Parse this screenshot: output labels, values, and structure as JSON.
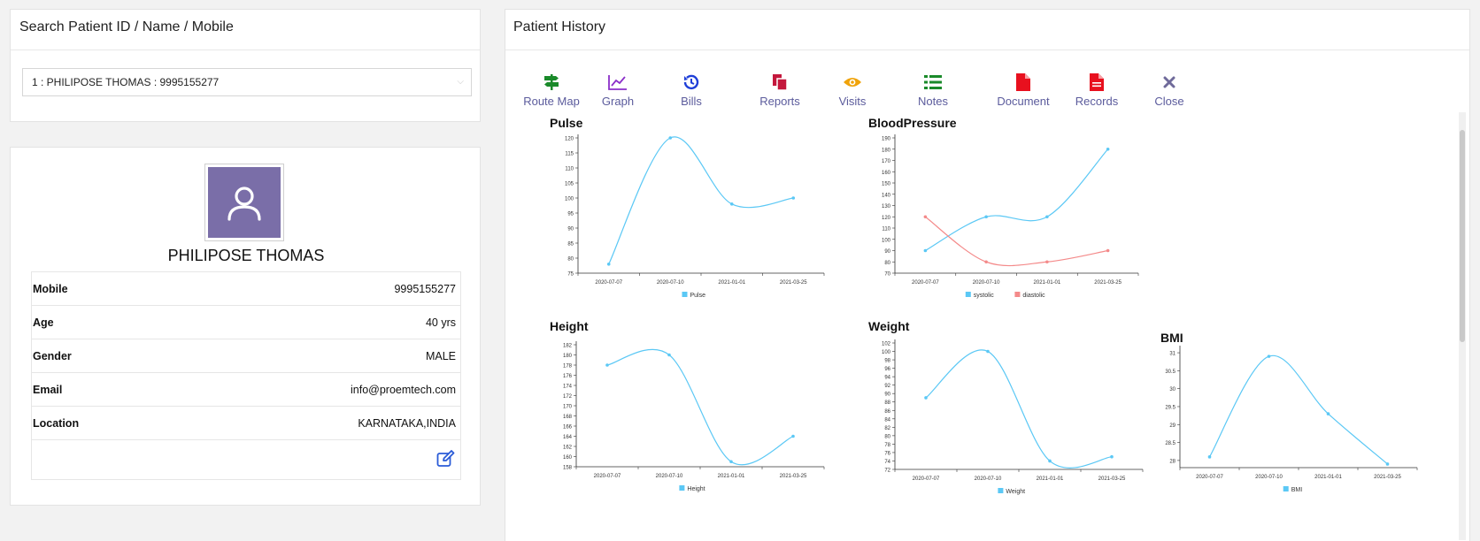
{
  "search": {
    "title": "Search Patient ID / Name / Mobile",
    "selected": "1 : PHILIPOSE THOMAS : 9995155277"
  },
  "profile": {
    "name": "PHILIPOSE THOMAS",
    "fields": [
      {
        "label": "Mobile",
        "value": "9995155277"
      },
      {
        "label": "Age",
        "value": "40 yrs"
      },
      {
        "label": "Gender",
        "value": "MALE"
      },
      {
        "label": "Email",
        "value": "info@proemtech.com"
      },
      {
        "label": "Location",
        "value": "KARNATAKA,INDIA"
      }
    ]
  },
  "history": {
    "title": "Patient History",
    "toolbar": [
      {
        "label": "Route Map",
        "icon": "signpost-icon",
        "color": "#1a8a2a"
      },
      {
        "label": "Graph",
        "icon": "line-graph-icon",
        "color": "#8b2fc9"
      },
      {
        "label": "Bills",
        "icon": "history-icon",
        "color": "#1f3fd8"
      },
      {
        "label": "Reports",
        "icon": "copy-docs-icon",
        "color": "#c4183c"
      },
      {
        "label": "Visits",
        "icon": "eye-icon",
        "color": "#f0a30a"
      },
      {
        "label": "Notes",
        "icon": "list-icon",
        "color": "#1a8a2a"
      },
      {
        "label": "Document",
        "icon": "file-icon",
        "color": "#e8101e"
      },
      {
        "label": "Records",
        "icon": "file-text-icon",
        "color": "#e8101e"
      },
      {
        "label": "Close",
        "icon": "close-icon",
        "color": "#6f6a9a"
      }
    ]
  },
  "chart_data": [
    {
      "type": "line",
      "title": "Pulse",
      "categories": [
        "2020-07-07",
        "2020-07-10",
        "2021-01-01",
        "2021-03-25"
      ],
      "series": [
        {
          "name": "Pulse",
          "values": [
            78,
            120,
            98,
            100
          ],
          "color": "#5bc8f5"
        }
      ],
      "ylim": [
        75,
        120
      ],
      "yticks": [
        75,
        80,
        85,
        90,
        95,
        100,
        105,
        110,
        115,
        120
      ]
    },
    {
      "type": "line",
      "title": "BloodPressure",
      "categories": [
        "2020-07-07",
        "2020-07-10",
        "2021-01-01",
        "2021-03-25"
      ],
      "series": [
        {
          "name": "systolic",
          "values": [
            90,
            120,
            120,
            180
          ],
          "color": "#5bc8f5"
        },
        {
          "name": "diastolic",
          "values": [
            120,
            80,
            80,
            90
          ],
          "color": "#f48a8a"
        }
      ],
      "ylim": [
        70,
        190
      ],
      "yticks": [
        70,
        80,
        90,
        100,
        110,
        120,
        130,
        140,
        150,
        160,
        170,
        180,
        190
      ]
    },
    {
      "type": "line",
      "title": "Height",
      "categories": [
        "2020-07-07",
        "2020-07-10",
        "2021-01-01",
        "2021-03-25"
      ],
      "series": [
        {
          "name": "Height",
          "values": [
            178,
            180,
            159,
            164
          ],
          "color": "#5bc8f5"
        }
      ],
      "ylim": [
        158,
        182
      ],
      "yticks": [
        158,
        160,
        162,
        164,
        166,
        168,
        170,
        172,
        174,
        176,
        178,
        180,
        182
      ]
    },
    {
      "type": "line",
      "title": "Weight",
      "categories": [
        "2020-07-07",
        "2020-07-10",
        "2021-01-01",
        "2021-03-25"
      ],
      "series": [
        {
          "name": "Weight",
          "values": [
            89,
            100,
            74,
            75
          ],
          "color": "#5bc8f5"
        }
      ],
      "ylim": [
        72,
        102
      ],
      "yticks": [
        72,
        74,
        76,
        78,
        80,
        82,
        84,
        86,
        88,
        90,
        92,
        94,
        96,
        98,
        100,
        102
      ]
    },
    {
      "type": "line",
      "title": "BMI",
      "categories": [
        "2020-07-07",
        "2020-07-10",
        "2021-01-01",
        "2021-03-25"
      ],
      "series": [
        {
          "name": "BMI",
          "values": [
            28.1,
            30.9,
            29.3,
            27.9
          ],
          "color": "#5bc8f5"
        }
      ],
      "ylim": [
        27.8,
        31.1
      ],
      "yticks": [
        28,
        28.5,
        29,
        29.5,
        30,
        30.5,
        31
      ]
    }
  ]
}
